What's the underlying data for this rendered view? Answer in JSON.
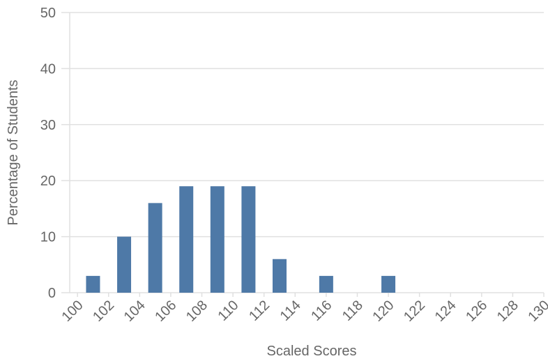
{
  "chart_data": {
    "type": "bar",
    "x_label": "Scaled Scores",
    "y_label": "Percentage of Students",
    "x": [
      101,
      103,
      105,
      107,
      109,
      111,
      113,
      116,
      120
    ],
    "values": [
      3,
      10,
      16,
      19,
      19,
      19,
      6,
      3,
      3
    ],
    "color": "#4e79a7",
    "xlim": [
      99.5,
      130
    ],
    "xticks": [
      100,
      102,
      104,
      106,
      108,
      110,
      112,
      114,
      116,
      118,
      120,
      122,
      124,
      126,
      128,
      130
    ],
    "ylim": [
      0,
      50
    ],
    "yticks": [
      0,
      10,
      20,
      30,
      40,
      50
    ],
    "grid": true
  }
}
